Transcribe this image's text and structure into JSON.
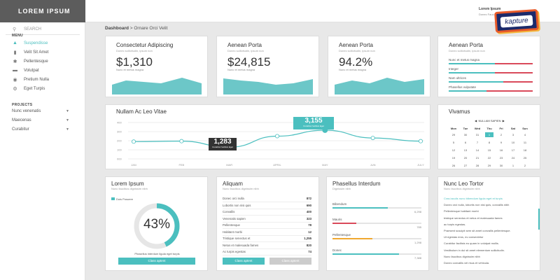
{
  "sidebar": {
    "logo": "LOREM IPSUM",
    "search_placeholder": "SEARCH",
    "menu_title": "MENU",
    "menu": [
      "Suspendisse",
      "Velit Sit Amet",
      "Pellentesque",
      "Volutpat",
      "Pretium Nulla",
      "Eget Turpis"
    ],
    "projects_title": "PROJECTS",
    "projects": [
      "Nunc venenatis",
      "Maecenas",
      "Curabitur"
    ]
  },
  "header": {
    "breadcrumb_root": "Dashboard",
    "breadcrumb_sep": ">",
    "breadcrumb_page": "Ornare Orci Velit",
    "user_name": "Lorem Ipsum",
    "user_sub": "Donec Fauc",
    "badge": "kapture"
  },
  "stats": [
    {
      "title": "Consectetur Adipiscing",
      "sub": "Donec sollicitudin, ipsum non",
      "value": "$1,310",
      "label": "Nunc et metus magna"
    },
    {
      "title": "Aenean Porta",
      "sub": "Donec sollicitudin, ipsum non",
      "value": "$24,815",
      "label": "Nunc et metus magna"
    },
    {
      "title": "Aenean Porta",
      "sub": "Donec sollicitudin, ipsum non",
      "value": "94.2%",
      "label": "Nunc et metus magna"
    }
  ],
  "bars_card": {
    "title": "Aenean Porta",
    "sub": "Donec sollicitudin, ipsum non",
    "items": [
      {
        "label": "Nunc et metus magna",
        "fill": 0.55
      },
      {
        "label": "Integer",
        "fill": 0.55
      },
      {
        "label": "Nam ultrices",
        "fill": 0.65
      },
      {
        "label": "Phasellus vulputate",
        "fill": 0.45
      }
    ]
  },
  "line_card": {
    "title": "Nullam Ac Leo Vitae",
    "tooltip1_value": "1,283",
    "tooltip1_label": "Curabitur facilisis Eget",
    "tooltip2_value": "3,155",
    "tooltip2_label": "Curabitur facilisis Eget"
  },
  "chart_data": {
    "type": "line",
    "categories": [
      "JAN",
      "FEB",
      "MAR",
      "APRIL",
      "MAY",
      "JUN",
      "JULY"
    ],
    "values": [
      1900,
      1950,
      1283,
      2500,
      3155,
      2300,
      1950
    ],
    "yticks": [
      "400",
      "300",
      "200",
      "100",
      "000"
    ],
    "ylim": [
      0,
      4000
    ]
  },
  "calendar": {
    "title": "Vivamus",
    "month": "NULLAM SAPIEN",
    "days": [
      "Mon",
      "Tue",
      "Wed",
      "Thu",
      "Fri",
      "Sat",
      "Sun"
    ],
    "rows": [
      [
        "29",
        "30",
        "31",
        "1",
        "2",
        "3",
        "4"
      ],
      [
        "5",
        "6",
        "7",
        "8",
        "9",
        "10",
        "11"
      ],
      [
        "12",
        "13",
        "14",
        "15",
        "16",
        "17",
        "18"
      ],
      [
        "19",
        "20",
        "21",
        "22",
        "23",
        "24",
        "25"
      ],
      [
        "26",
        "27",
        "28",
        "29",
        "30",
        "1",
        "2"
      ]
    ],
    "selected": "1"
  },
  "donut": {
    "title": "Lorem Ipsum",
    "sub": "Nunc faucibus dignissim nibh",
    "legend": "Duis Posuere",
    "value": "43%",
    "percent": 43,
    "caption": "Phasellus interdum ligula eget turpis",
    "button": "Class aptent"
  },
  "table": {
    "title": "Aliquam",
    "sub": "Nunc faucibus dignissim nibh",
    "rows": [
      [
        "Donec orci nulla",
        "872"
      ],
      [
        "Lobortis non nisi quis",
        "690"
      ],
      [
        "Convallis",
        "400"
      ],
      [
        "Venenatis sapien",
        "323"
      ],
      [
        "Pellentesque",
        "78"
      ],
      [
        "Habitant morbi",
        "12"
      ],
      [
        "Tristique senectus et",
        "1,255"
      ],
      [
        "Netus et malesuada fames",
        "820"
      ],
      [
        "Ac turpis egestas",
        "74"
      ]
    ],
    "button1": "Class aptent",
    "button2": "Class aptent"
  },
  "progress": {
    "title": "Phasellus Interdum",
    "sub": "Dignissim nibh",
    "items": [
      {
        "label": "Bibendum",
        "value": "6,298",
        "fill": 0.62,
        "color": "#4bbfbf"
      },
      {
        "label": "Mauris",
        "value": "785",
        "fill": 0.27,
        "color": "#d94a5a"
      },
      {
        "label": "Pellentesque",
        "value": "1,298",
        "fill": 0.45,
        "color": "#f0a830"
      },
      {
        "label": "Donec",
        "value": "7,388",
        "fill": 0.75,
        "color": "#4bbfbf"
      }
    ]
  },
  "feed": {
    "title": "Nunc Leo Tortor",
    "sub": "Nunc faucibus dignissim nibh",
    "items": [
      "Cras iaculis nunc bibendum ligula eget et turpis",
      "Donec orci nulla, lobortis non nisi quis, convallis nibh",
      "Pellentesque habitant morbi",
      "tristique senectus et netus et malesuada fames",
      "ac turpis egestas.",
      "Praesent suscipit sem sit amet convallis pellentesque.",
      "Ut egestas eros, eu consectetur",
      "Curabitur facilisis eu quam in volutpat mollis.",
      "Vestibulum in dui sit amet elementum sollicitudin.",
      "Nunc faucibus dignissim nibh",
      "Donec convallis vel risus et vehicula."
    ]
  },
  "colors": {
    "accent": "#4bbfbf",
    "red": "#d94a5a",
    "orange": "#f0a830",
    "sidebar_header": "#5c5c5c"
  }
}
